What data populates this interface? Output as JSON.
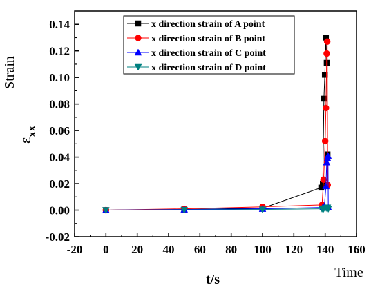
{
  "chart_data": {
    "type": "line",
    "title": "",
    "xlabel": "t/s",
    "ylabel_main": "ε",
    "ylabel_sub": "xx",
    "corner_y_label": "Strain",
    "corner_x_label": "Time",
    "xlim": [
      -20,
      160
    ],
    "ylim": [
      -0.02,
      0.15
    ],
    "x_ticks": [
      -20,
      0,
      20,
      40,
      60,
      80,
      100,
      120,
      140,
      160
    ],
    "x_tick_labels": [
      "-20",
      "0",
      "20",
      "40",
      "60",
      "80",
      "100",
      "120",
      "140",
      "160"
    ],
    "y_ticks": [
      -0.02,
      0.0,
      0.02,
      0.04,
      0.06,
      0.08,
      0.1,
      0.12,
      0.14
    ],
    "y_tick_labels": [
      "-0.02",
      "0.00",
      "0.02",
      "0.04",
      "0.06",
      "0.08",
      "0.10",
      "0.12",
      "0.14"
    ],
    "grid": false,
    "legend_position": "top-right",
    "series": [
      {
        "name": "x direction strain of A point",
        "color": "#000000",
        "marker": "square",
        "x": [
          0,
          50,
          100,
          137.5,
          138.5,
          139.2,
          139.8,
          140.5,
          141,
          141.5
        ],
        "y": [
          0,
          0.0005,
          0.0015,
          0.017,
          0.02,
          0.084,
          0.102,
          0.13,
          0.111,
          0.042
        ]
      },
      {
        "name": "x direction strain of B point",
        "color": "#ff0000",
        "marker": "circle",
        "x": [
          0,
          50,
          100,
          138,
          139,
          140,
          140.5,
          141,
          141.3,
          141.6
        ],
        "y": [
          0,
          0.001,
          0.0025,
          0.004,
          0.023,
          0.052,
          0.077,
          0.118,
          0.127,
          0.019
        ]
      },
      {
        "name": "x direction strain of C point",
        "color": "#0000ff",
        "marker": "triangle-up",
        "x": [
          0,
          50,
          100,
          138.5,
          139.5,
          140.5,
          141,
          141.5,
          141.8,
          142
        ],
        "y": [
          0,
          0.0005,
          0.001,
          0.002,
          0.003,
          0.018,
          0.036,
          0.039,
          0.041,
          0.002
        ]
      },
      {
        "name": "x direction strain of D point",
        "color": "#008080",
        "marker": "triangle-down",
        "x": [
          0,
          50,
          100,
          138,
          139,
          140,
          141,
          141.5,
          142
        ],
        "y": [
          0,
          0.0002,
          0.0005,
          0.001,
          0.001,
          0.0015,
          0.0015,
          0.002,
          0.001
        ]
      }
    ]
  }
}
